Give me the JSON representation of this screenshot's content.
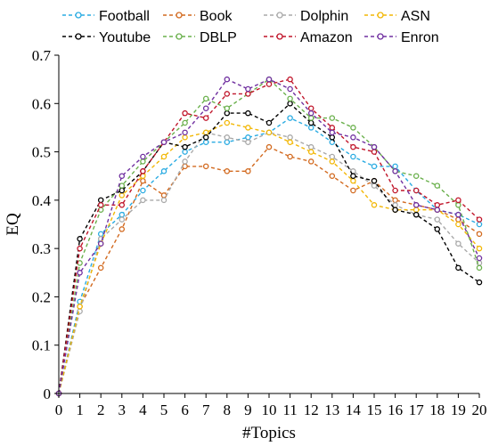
{
  "chart_data": {
    "type": "line",
    "xlabel": "#Topics",
    "ylabel": "EQ",
    "xlim": [
      0,
      20
    ],
    "ylim": [
      0,
      0.7
    ],
    "x": [
      0,
      1,
      2,
      3,
      4,
      5,
      6,
      7,
      8,
      9,
      10,
      11,
      12,
      13,
      14,
      15,
      16,
      17,
      18,
      19,
      20
    ],
    "xticks": [
      "0",
      "1",
      "2",
      "3",
      "4",
      "5",
      "6",
      "7",
      "8",
      "9",
      "10",
      "11",
      "12",
      "13",
      "14",
      "15",
      "16",
      "17",
      "18",
      "19",
      "20"
    ],
    "yticks": [
      "0",
      "0.1",
      "0.2",
      "0.3",
      "0.4",
      "0.5",
      "0.6",
      "0.7"
    ],
    "grid": false,
    "legend_position": "top",
    "series": [
      {
        "name": "Football",
        "color": "#29ABE2",
        "values": [
          0,
          0.19,
          0.33,
          0.37,
          0.42,
          0.46,
          0.5,
          0.52,
          0.52,
          0.53,
          0.54,
          0.57,
          0.55,
          0.52,
          0.49,
          0.47,
          0.47,
          0.42,
          0.38,
          0.37,
          0.35
        ]
      },
      {
        "name": "Book",
        "color": "#D2691E",
        "values": [
          0,
          0.18,
          0.26,
          0.34,
          0.44,
          0.41,
          0.47,
          0.47,
          0.46,
          0.46,
          0.51,
          0.49,
          0.48,
          0.45,
          0.42,
          0.44,
          0.4,
          0.39,
          0.38,
          0.36,
          0.33
        ]
      },
      {
        "name": "Dolphin",
        "color": "#A9A9A9",
        "values": [
          0,
          0.17,
          0.32,
          0.36,
          0.4,
          0.4,
          0.48,
          0.54,
          0.53,
          0.52,
          0.54,
          0.53,
          0.51,
          0.49,
          0.46,
          0.43,
          0.39,
          0.37,
          0.36,
          0.31,
          0.27
        ]
      },
      {
        "name": "ASN",
        "color": "#F2B705",
        "values": [
          0,
          0.18,
          0.31,
          0.41,
          0.45,
          0.49,
          0.53,
          0.54,
          0.56,
          0.55,
          0.54,
          0.52,
          0.5,
          0.48,
          0.44,
          0.39,
          0.38,
          0.38,
          0.38,
          0.35,
          0.3
        ]
      },
      {
        "name": "Youtube",
        "color": "#000000",
        "values": [
          0,
          0.32,
          0.4,
          0.42,
          0.46,
          0.52,
          0.51,
          0.53,
          0.58,
          0.58,
          0.56,
          0.6,
          0.56,
          0.53,
          0.45,
          0.44,
          0.38,
          0.37,
          0.34,
          0.26,
          0.23
        ]
      },
      {
        "name": "DBLP",
        "color": "#6AB04C",
        "values": [
          0,
          0.27,
          0.38,
          0.43,
          0.48,
          0.52,
          0.56,
          0.61,
          0.59,
          0.62,
          0.65,
          0.61,
          0.57,
          0.57,
          0.55,
          0.51,
          0.46,
          0.45,
          0.43,
          0.39,
          0.26
        ]
      },
      {
        "name": "Amazon",
        "color": "#C0152A",
        "values": [
          0,
          0.3,
          0.39,
          0.39,
          0.46,
          0.52,
          0.58,
          0.57,
          0.62,
          0.62,
          0.64,
          0.65,
          0.59,
          0.55,
          0.51,
          0.5,
          0.42,
          0.42,
          0.39,
          0.4,
          0.36
        ]
      },
      {
        "name": "Enron",
        "color": "#7030A0",
        "values": [
          0,
          0.25,
          0.31,
          0.45,
          0.49,
          0.52,
          0.54,
          0.59,
          0.65,
          0.63,
          0.65,
          0.63,
          0.58,
          0.54,
          0.53,
          0.51,
          0.46,
          0.39,
          0.38,
          0.37,
          0.28
        ]
      }
    ]
  }
}
